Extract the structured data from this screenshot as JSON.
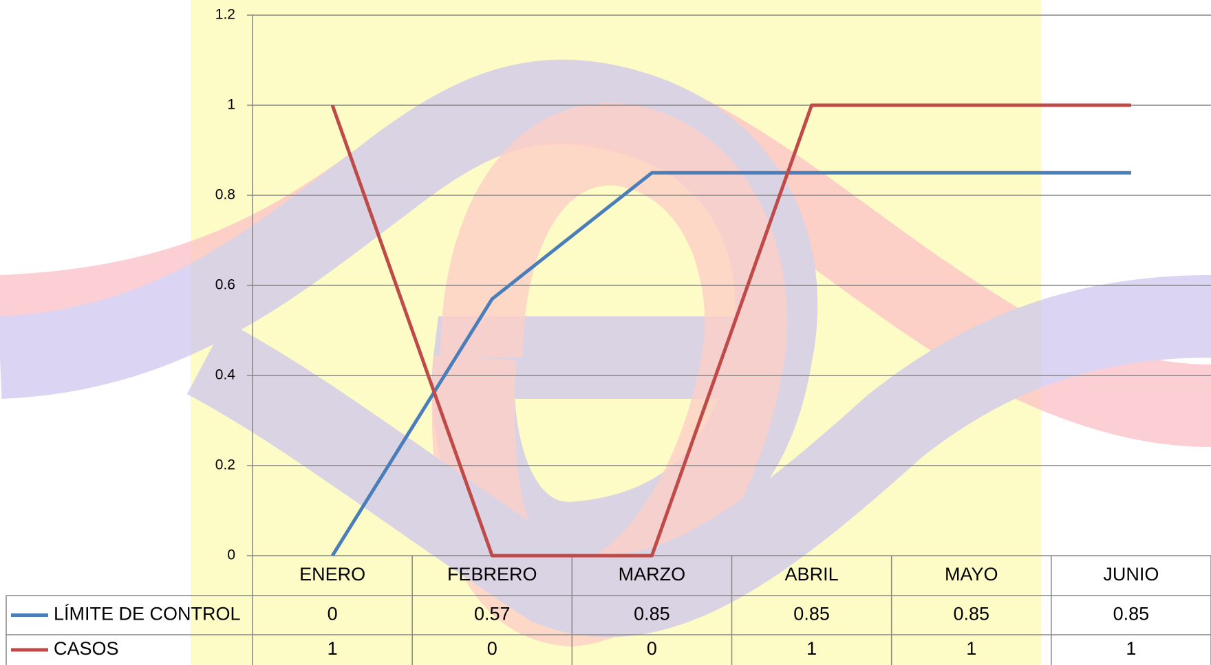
{
  "chart_data": {
    "type": "line",
    "categories": [
      "ENERO",
      "FEBRERO",
      "MARZO",
      "ABRIL",
      "MAYO",
      "JUNIO"
    ],
    "series": [
      {
        "name": "LÍMITE DE CONTROL",
        "color": "#4a7ebb",
        "values": [
          0,
          0.57,
          0.85,
          0.85,
          0.85,
          0.85
        ]
      },
      {
        "name": "CASOS",
        "color": "#be4b48",
        "values": [
          1,
          0,
          0,
          1,
          1,
          1
        ]
      }
    ],
    "ylim": [
      0,
      1.2
    ],
    "yticks": [
      0,
      0.2,
      0.4,
      0.6,
      0.8,
      1,
      1.2
    ],
    "grid": true,
    "data_table": true
  }
}
